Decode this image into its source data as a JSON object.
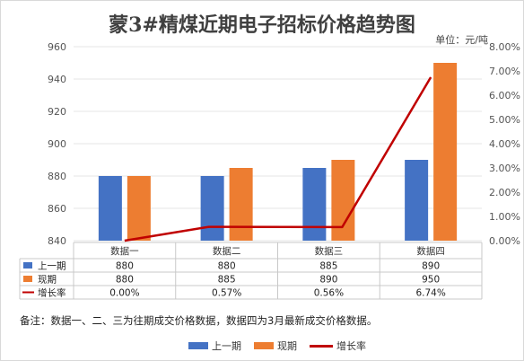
{
  "title": "蒙3#精煤近期电子招标价格趋势图",
  "unit": "单位：元/吨",
  "note": "备注：数据一、二、三为往期成交价格数据，数据四为3月最新成交价格数据。",
  "colors": {
    "prev": "#4472c4",
    "curr": "#ed7d31",
    "growth": "#c00000"
  },
  "chart_data": {
    "type": "bar",
    "categories": [
      "数据一",
      "数据二",
      "数据三",
      "数据四"
    ],
    "series": [
      {
        "name": "上一期",
        "values": [
          880,
          880,
          885,
          890
        ],
        "kind": "bar",
        "axis": "left"
      },
      {
        "name": "现期",
        "values": [
          880,
          885,
          890,
          950
        ],
        "kind": "bar",
        "axis": "left"
      },
      {
        "name": "增长率",
        "values": [
          0.0,
          0.57,
          0.56,
          6.74
        ],
        "kind": "line",
        "axis": "right"
      }
    ],
    "left_axis": {
      "min": 840,
      "max": 960,
      "ticks": [
        "840",
        "860",
        "880",
        "900",
        "920",
        "940",
        "960"
      ]
    },
    "right_axis": {
      "min": 0,
      "max": 8,
      "ticks": [
        "0.00%",
        "1.00%",
        "2.00%",
        "3.00%",
        "4.00%",
        "5.00%",
        "6.00%",
        "7.00%",
        "8.00%"
      ]
    },
    "table": {
      "rows": [
        {
          "label": "上一期",
          "cells": [
            "880",
            "880",
            "885",
            "890"
          ]
        },
        {
          "label": "现期",
          "cells": [
            "880",
            "885",
            "890",
            "950"
          ]
        },
        {
          "label": "增长率",
          "cells": [
            "0.00%",
            "0.57%",
            "0.56%",
            "6.74%"
          ]
        }
      ]
    },
    "legend": [
      "上一期",
      "现期",
      "增长率"
    ]
  }
}
